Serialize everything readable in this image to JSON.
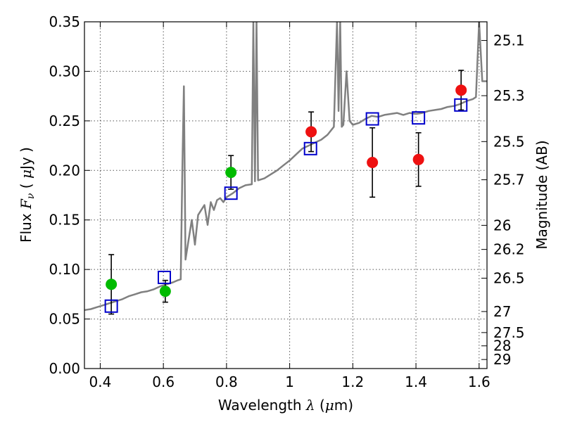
{
  "chart_data": {
    "type": "scatter",
    "title": "",
    "xlabel": "Wavelength  λ (μm)",
    "ylabel": "Flux  F_ν  ( μJy )",
    "y2label": "Magnitude (AB)",
    "xlim": [
      0.35,
      1.625
    ],
    "ylim": [
      0,
      0.35
    ],
    "grid": true,
    "x_ticks": [
      0.4,
      0.6,
      0.8,
      1.0,
      1.2,
      1.4,
      1.6
    ],
    "x_tick_labels": [
      "0.4",
      "0.6",
      "0.8",
      "1",
      "1.2",
      "1.4",
      "1.6"
    ],
    "y_ticks": [
      0,
      0.05,
      0.1,
      0.15,
      0.2,
      0.25,
      0.3,
      0.35
    ],
    "y_tick_labels": [
      "0.00",
      "0.05",
      "0.10",
      "0.15",
      "0.20",
      "0.25",
      "0.30",
      "0.35"
    ],
    "y2_ticks": [
      25.1,
      25.3,
      25.5,
      25.7,
      26,
      26.2,
      26.5,
      27,
      27.5,
      28,
      29
    ],
    "y2_tick_labels": [
      "25.1",
      "25.3",
      "25.5",
      "25.7",
      "26",
      "26.2",
      "26.5",
      "27",
      "27.5",
      "28",
      "29"
    ],
    "colors": {
      "template": "#808080",
      "optical": "#00bb00",
      "infrared": "#ee1111",
      "model": "#0000cc",
      "errorbar": "#000000",
      "grid": "#555555"
    },
    "series": [
      {
        "kind": "line",
        "color": "#808080",
        "x": [
          0.35,
          0.37,
          0.39,
          0.41,
          0.43,
          0.45,
          0.47,
          0.49,
          0.51,
          0.53,
          0.55,
          0.57,
          0.59,
          0.61,
          0.63,
          0.645,
          0.655,
          0.66,
          0.665,
          0.67,
          0.68,
          0.69,
          0.7,
          0.71,
          0.72,
          0.73,
          0.74,
          0.75,
          0.76,
          0.77,
          0.78,
          0.79,
          0.8,
          0.82,
          0.84,
          0.86,
          0.88,
          0.885,
          0.89,
          0.895,
          0.9,
          0.92,
          0.94,
          0.96,
          0.98,
          1.0,
          1.02,
          1.04,
          1.06,
          1.08,
          1.1,
          1.12,
          1.14,
          1.15,
          1.155,
          1.16,
          1.165,
          1.17,
          1.18,
          1.19,
          1.2,
          1.22,
          1.24,
          1.26,
          1.28,
          1.3,
          1.32,
          1.34,
          1.36,
          1.38,
          1.4,
          1.42,
          1.44,
          1.46,
          1.48,
          1.5,
          1.52,
          1.54,
          1.56,
          1.58,
          1.59,
          1.6,
          1.61,
          1.625
        ],
        "y": [
          0.059,
          0.06,
          0.062,
          0.064,
          0.066,
          0.068,
          0.07,
          0.073,
          0.075,
          0.077,
          0.078,
          0.08,
          0.083,
          0.085,
          0.087,
          0.089,
          0.09,
          0.2,
          0.285,
          0.11,
          0.13,
          0.15,
          0.125,
          0.155,
          0.16,
          0.165,
          0.145,
          0.168,
          0.16,
          0.17,
          0.172,
          0.168,
          0.173,
          0.177,
          0.182,
          0.185,
          0.186,
          0.35,
          0.189,
          0.35,
          0.19,
          0.192,
          0.196,
          0.2,
          0.205,
          0.21,
          0.216,
          0.222,
          0.225,
          0.228,
          0.231,
          0.236,
          0.244,
          0.35,
          0.26,
          0.35,
          0.244,
          0.246,
          0.3,
          0.25,
          0.246,
          0.248,
          0.252,
          0.255,
          0.254,
          0.256,
          0.257,
          0.258,
          0.256,
          0.258,
          0.257,
          0.258,
          0.26,
          0.261,
          0.262,
          0.264,
          0.265,
          0.267,
          0.27,
          0.272,
          0.274,
          0.35,
          0.29,
          0.29
        ]
      },
      {
        "kind": "points",
        "color": "#00bb00",
        "x": [
          0.435,
          0.606,
          0.814
        ],
        "y": [
          0.085,
          0.078,
          0.198
        ],
        "err": [
          0.03,
          0.011,
          0.017
        ]
      },
      {
        "kind": "points",
        "color": "#ee1111",
        "x": [
          1.068,
          1.262,
          1.408,
          1.543
        ],
        "y": [
          0.239,
          0.208,
          0.211,
          0.281
        ],
        "err": [
          0.02,
          0.035,
          0.027,
          0.02
        ]
      },
      {
        "kind": "open-squares",
        "color": "#0000cc",
        "x": [
          0.435,
          0.603,
          0.814,
          1.066,
          1.262,
          1.408,
          1.542
        ],
        "y": [
          0.063,
          0.092,
          0.177,
          0.222,
          0.252,
          0.253,
          0.266
        ]
      }
    ]
  }
}
